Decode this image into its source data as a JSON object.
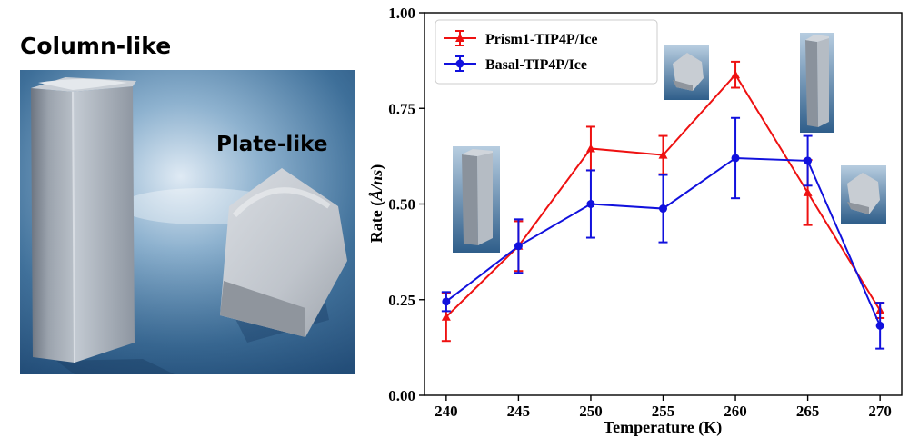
{
  "left_panel": {
    "column_label": "Column-like",
    "plate_label": "Plate-like"
  },
  "chart_data": {
    "type": "line",
    "title": "",
    "xlabel": "Temperature (K)",
    "ylabel_prefix": "Rate (",
    "ylabel_unit_a": "Å",
    "ylabel_unit_sep": "/",
    "ylabel_unit_b": "ns",
    "ylabel_suffix": ")",
    "x": [
      240,
      245,
      250,
      255,
      260,
      265,
      270
    ],
    "x_tick_labels": [
      "240",
      "245",
      "250",
      "255",
      "260",
      "265",
      "270"
    ],
    "xlim": [
      238.5,
      271.5
    ],
    "ylim": [
      0.0,
      1.0
    ],
    "y_ticks": [
      0.0,
      0.25,
      0.5,
      0.75,
      1.0
    ],
    "y_tick_labels": [
      "0.00",
      "0.25",
      "0.50",
      "0.75",
      "1.00"
    ],
    "legend_position": "top-left",
    "series": [
      {
        "name": "Prism1-TIP4P/Ice",
        "color": "#ee1111",
        "marker": "triangle",
        "values": [
          0.205,
          0.39,
          0.645,
          0.628,
          0.838,
          0.53,
          0.222
        ],
        "errors": [
          0.063,
          0.065,
          0.057,
          0.05,
          0.034,
          0.085,
          0.02
        ]
      },
      {
        "name": "Basal-TIP4P/Ice",
        "color": "#1111dd",
        "marker": "circle",
        "values": [
          0.245,
          0.39,
          0.5,
          0.488,
          0.62,
          0.613,
          0.182
        ],
        "errors": [
          0.025,
          0.07,
          0.088,
          0.088,
          0.105,
          0.065,
          0.06
        ]
      }
    ],
    "inset_images": [
      {
        "name": "column-crystal-thumbnail",
        "near_x": 243
      },
      {
        "name": "plate-crystal-thumbnail",
        "near_x": 256
      },
      {
        "name": "column-crystal-thumbnail",
        "near_x": 263
      },
      {
        "name": "plate-crystal-thumbnail",
        "near_x": 268
      }
    ]
  }
}
